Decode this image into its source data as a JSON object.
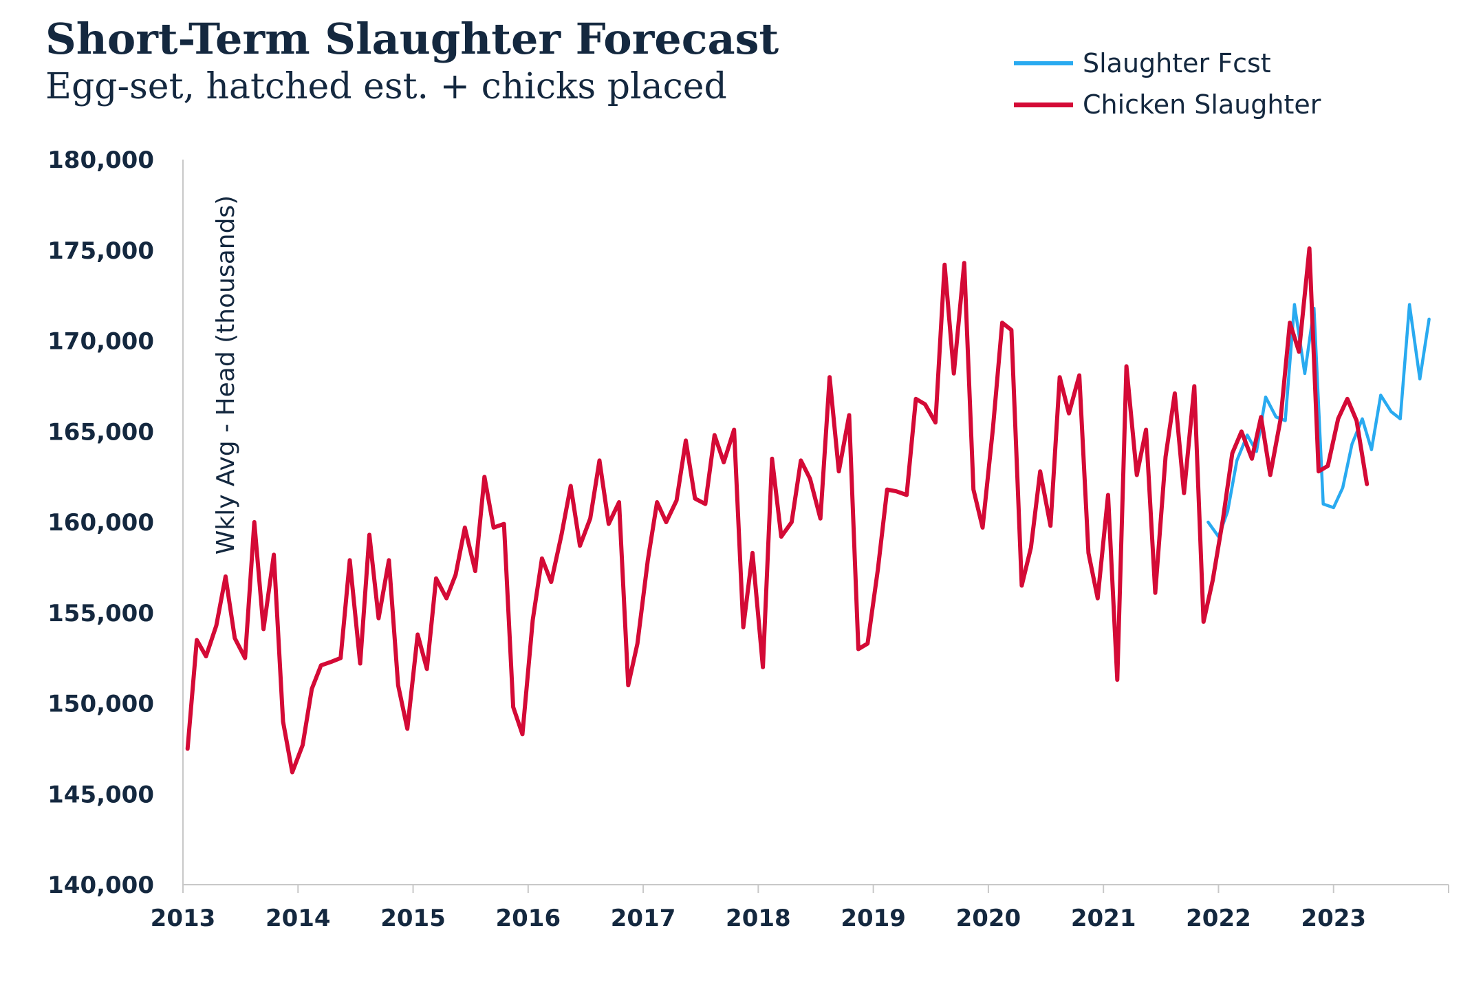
{
  "colors": {
    "forecast": "#29aaf0",
    "actual": "#d40a36",
    "text": "#14283f",
    "axis": "#c8c8c8"
  },
  "legend": [
    {
      "name": "Slaughter Fcst",
      "color": "#29aaf0"
    },
    {
      "name": "Chicken Slaughter",
      "color": "#d40a36"
    }
  ],
  "chart_data": {
    "type": "line",
    "title": "Short-Term Slaughter Forecast",
    "subtitle": "Egg-set, hatched est. + chicks placed",
    "ylabel": "Wkly Avg - Head (thousands)",
    "xlabel": "",
    "ylim": [
      140000,
      180000
    ],
    "yticks": [
      140000,
      145000,
      150000,
      155000,
      160000,
      165000,
      170000,
      175000,
      180000
    ],
    "ytick_labels": [
      "140,000",
      "145,000",
      "150,000",
      "155,000",
      "160,000",
      "165,000",
      "170,000",
      "175,000",
      "180,000"
    ],
    "xlim": [
      2013.0,
      2024.0
    ],
    "xticks": [
      2013,
      2014,
      2015,
      2016,
      2017,
      2018,
      2019,
      2020,
      2021,
      2022,
      2023
    ],
    "grid": false,
    "legend_position": "top-right",
    "series": [
      {
        "name": "Chicken Slaughter",
        "x": [
          2013.04,
          2013.12,
          2013.2,
          2013.29,
          2013.37,
          2013.45,
          2013.54,
          2013.62,
          2013.7,
          2013.79,
          2013.87,
          2013.95,
          2014.04,
          2014.12,
          2014.2,
          2014.29,
          2014.37,
          2014.45,
          2014.54,
          2014.62,
          2014.7,
          2014.79,
          2014.87,
          2014.95,
          2015.04,
          2015.12,
          2015.2,
          2015.29,
          2015.37,
          2015.45,
          2015.54,
          2015.62,
          2015.7,
          2015.79,
          2015.87,
          2015.95,
          2016.04,
          2016.12,
          2016.2,
          2016.29,
          2016.37,
          2016.45,
          2016.54,
          2016.62,
          2016.7,
          2016.79,
          2016.87,
          2016.95,
          2017.04,
          2017.12,
          2017.2,
          2017.29,
          2017.37,
          2017.45,
          2017.54,
          2017.62,
          2017.7,
          2017.79,
          2017.87,
          2017.95,
          2018.04,
          2018.12,
          2018.2,
          2018.29,
          2018.37,
          2018.45,
          2018.54,
          2018.62,
          2018.7,
          2018.79,
          2018.87,
          2018.95,
          2019.04,
          2019.12,
          2019.2,
          2019.29,
          2019.37,
          2019.45,
          2019.54,
          2019.62,
          2019.7,
          2019.79,
          2019.87,
          2019.95,
          2020.04,
          2020.12,
          2020.2,
          2020.29,
          2020.37,
          2020.45,
          2020.54,
          2020.62,
          2020.7,
          2020.79,
          2020.87,
          2020.95,
          2021.04,
          2021.12,
          2021.2,
          2021.29,
          2021.37,
          2021.45,
          2021.54,
          2021.62,
          2021.7,
          2021.79,
          2021.87,
          2021.95,
          2022.04,
          2022.12,
          2022.2,
          2022.29,
          2022.37,
          2022.45,
          2022.54,
          2022.62,
          2022.7,
          2022.79,
          2022.87,
          2022.95,
          2023.04,
          2023.12,
          2023.2,
          2023.29
        ],
        "values": [
          147500,
          153500,
          152600,
          154300,
          157000,
          153600,
          152500,
          160000,
          154100,
          158200,
          149000,
          146200,
          147700,
          150800,
          152100,
          152300,
          152500,
          157900,
          152200,
          159300,
          154700,
          157900,
          151000,
          148600,
          153800,
          151900,
          156900,
          155800,
          157100,
          159700,
          157300,
          162500,
          159700,
          159900,
          149800,
          148300,
          154600,
          158000,
          156700,
          159300,
          162000,
          158700,
          160200,
          163400,
          159900,
          161100,
          151000,
          153300,
          157900,
          161100,
          160000,
          161200,
          164500,
          161300,
          161000,
          164800,
          163300,
          165100,
          154200,
          158300,
          152000,
          163500,
          159200,
          160000,
          163400,
          162400,
          160200,
          168000,
          162800,
          165900,
          153000,
          153300,
          157400,
          161800,
          161700,
          161500,
          166800,
          166500,
          165500,
          174200,
          168200,
          174300,
          161800,
          159700,
          165200,
          171000,
          170600,
          156500,
          158600,
          162800,
          159800,
          168000,
          166000,
          168100,
          158300,
          155800,
          161500,
          151300,
          168600,
          162600,
          165100,
          156100,
          163600,
          167100,
          161600,
          167500,
          154500,
          156800,
          160200,
          163800,
          165000,
          163500,
          165800,
          162600,
          165700,
          171000,
          169400,
          175100,
          162800,
          163100,
          165700,
          166800,
          165600,
          162100
        ]
      },
      {
        "name": "Slaughter Fcst",
        "x": [
          2021.91,
          2022.0,
          2022.08,
          2022.16,
          2022.25,
          2022.33,
          2022.41,
          2022.5,
          2022.58,
          2022.66,
          2022.75,
          2022.83,
          2022.91,
          2023.0,
          2023.08,
          2023.16,
          2023.25,
          2023.33,
          2023.41,
          2023.5,
          2023.58,
          2023.66,
          2023.75,
          2023.83
        ],
        "values": [
          160000,
          159200,
          160600,
          163400,
          164800,
          163900,
          166900,
          165800,
          165600,
          172000,
          168200,
          171800,
          161000,
          160800,
          161900,
          164300,
          165700,
          164000,
          167000,
          166100,
          165700,
          172000,
          167900,
          171200
        ]
      }
    ]
  }
}
